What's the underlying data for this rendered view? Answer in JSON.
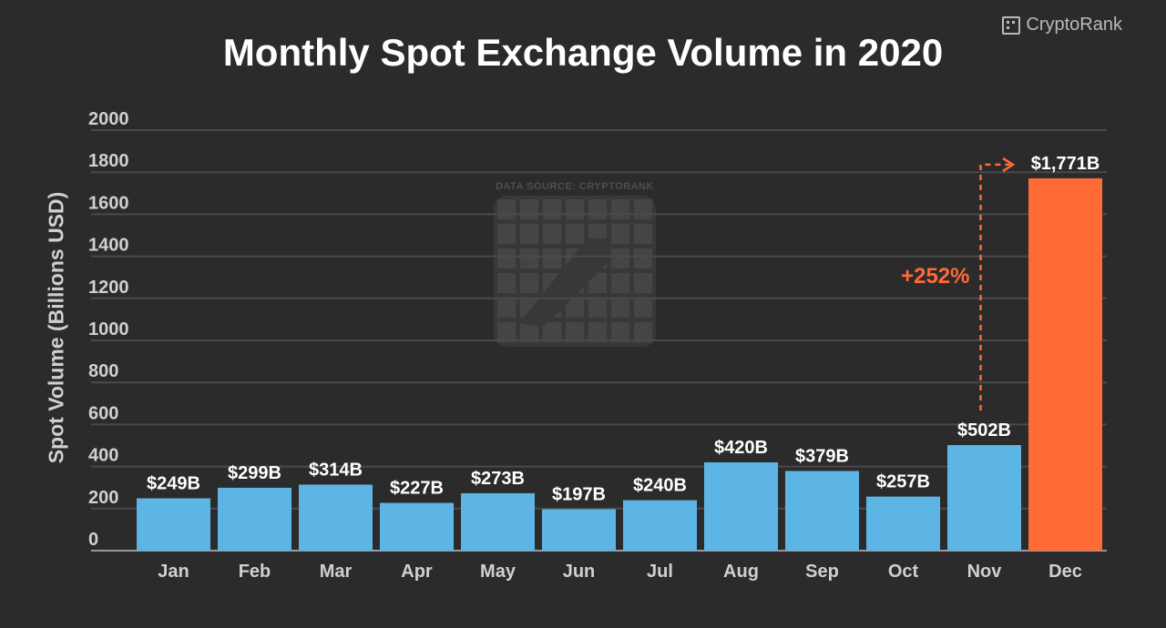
{
  "brand": {
    "name": "CryptoRank",
    "icon": "cryptorank-logo-icon"
  },
  "watermark": {
    "text": "DATA SOURCE: CRYPTORANK"
  },
  "chart_data": {
    "type": "bar",
    "title": "Monthly Spot Exchange Volume in 2020",
    "xlabel": "",
    "ylabel": "Spot Volume (Billions USD)",
    "ylim": [
      0,
      2000
    ],
    "yticks": [
      "0",
      "200",
      "400",
      "600",
      "800",
      "1000",
      "1200",
      "1400",
      "1600",
      "1800",
      "2000"
    ],
    "grid": true,
    "categories": [
      "Jan",
      "Feb",
      "Mar",
      "Apr",
      "May",
      "Jun",
      "Jul",
      "Aug",
      "Sep",
      "Oct",
      "Nov",
      "Dec"
    ],
    "values": [
      249,
      299,
      314,
      227,
      273,
      197,
      240,
      420,
      379,
      257,
      502,
      1771
    ],
    "data_labels": [
      "$249B",
      "$299B",
      "$314B",
      "$227B",
      "$273B",
      "$197B",
      "$240B",
      "$420B",
      "$379B",
      "$257B",
      "$502B",
      "$1,771B"
    ],
    "colors": {
      "bar": "#5db5e6",
      "highlight": "#ff6a35",
      "grid": "#4a4a4a",
      "axis": "#9a9a9a"
    },
    "highlight_index": 11,
    "annotation": {
      "text": "+252%",
      "from_index": 10,
      "to_index": 11
    }
  }
}
